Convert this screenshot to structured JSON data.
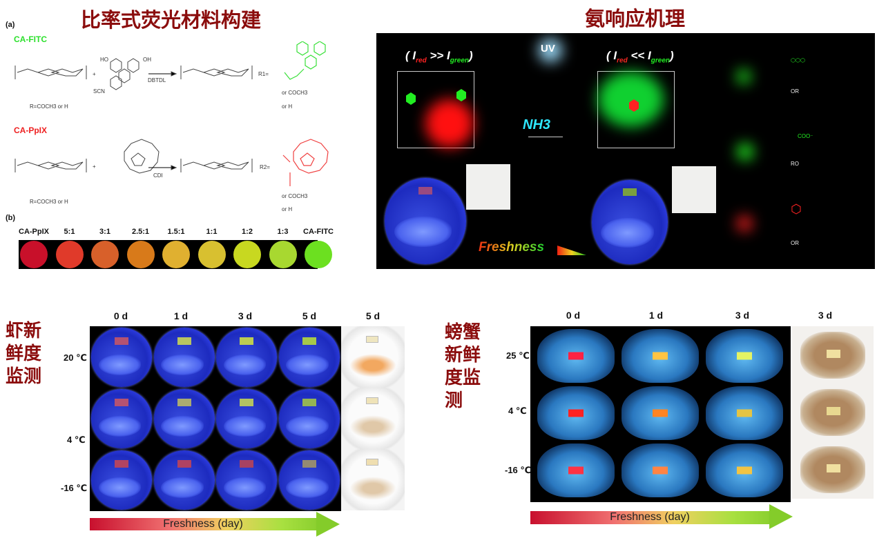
{
  "top_left": {
    "title": "比率式荧光材料构建",
    "panel_a": "(a)",
    "fitc_label": "CA-FITC",
    "pplx_label": "CA-PpIX",
    "r_def": "R=COCH3 or H",
    "reagent1": "DBTDL",
    "reagent2": "CDI",
    "r1_eq": "R1=",
    "r2_eq": "R2=",
    "or_coch3": "or COCH3",
    "or_h": "or H",
    "scn": "SCN",
    "ho": "HO",
    "oh": "OH",
    "plus": "+",
    "panel_b": "(b)",
    "ratios": [
      {
        "label": "CA-PpIX",
        "color": "#c8102a"
      },
      {
        "label": "5:1",
        "color": "#e03a2a"
      },
      {
        "label": "3:1",
        "color": "#d8602a"
      },
      {
        "label": "2.5:1",
        "color": "#d87a1a"
      },
      {
        "label": "1.5:1",
        "color": "#e0b030"
      },
      {
        "label": "1:1",
        "color": "#d8c030"
      },
      {
        "label": "1:2",
        "color": "#c8d820"
      },
      {
        "label": "1:3",
        "color": "#a8d830"
      },
      {
        "label": "CA-FITC",
        "color": "#6ce020"
      }
    ]
  },
  "top_right": {
    "title": "氨响应机理",
    "uv": "UV",
    "left_ratio": {
      "open": "(",
      "i": "I",
      "red": "red",
      "op": ">>",
      "green": "green",
      "close": ")"
    },
    "right_ratio": {
      "open": "(",
      "i": "I",
      "red": "red",
      "op": "<<",
      "green": "green",
      "close": ")"
    },
    "nh3": "NH3",
    "freshness": "Freshness",
    "chem_or": "OR",
    "chem_ro": "RO",
    "coo": "COO⁻"
  },
  "shrimp": {
    "label": "虾新鲜度监测",
    "columns": [
      "0 d",
      "1 d",
      "3 d",
      "5 d",
      "5 d"
    ],
    "rows": [
      {
        "temp": "20 ℃",
        "strips": [
          "#b45272",
          "#b8c462",
          "#bccc52",
          "#a6c84a"
        ],
        "photo_strip": "#efe6c0"
      },
      {
        "temp": "4 ℃",
        "strips": [
          "#b45272",
          "#aaaa72",
          "#b2c262",
          "#94b454"
        ],
        "photo_strip": "#efe3b8"
      },
      {
        "temp": "-16 ℃",
        "strips": [
          "#b24462",
          "#b04262",
          "#a84262",
          "#948a72"
        ],
        "photo_strip": "#efdeb0"
      }
    ],
    "arrow": "Freshness (day)"
  },
  "crab": {
    "label": "螃蟹新鲜度监测",
    "columns": [
      "0 d",
      "1 d",
      "3 d",
      "3 d"
    ],
    "rows": [
      {
        "temp": "25 ℃",
        "strips": [
          "#ff2244",
          "#ffc444",
          "#e4f464"
        ],
        "photo_strip": "#f0e0a0"
      },
      {
        "temp": "4 ℃",
        "strips": [
          "#ff2222",
          "#ff8422",
          "#e4c444"
        ],
        "photo_strip": "#e8d890"
      },
      {
        "temp": "-16 ℃",
        "strips": [
          "#ff3344",
          "#ff8444",
          "#f2c444"
        ],
        "photo_strip": "#f0e0a0"
      }
    ],
    "arrow": "Freshness (day)"
  }
}
